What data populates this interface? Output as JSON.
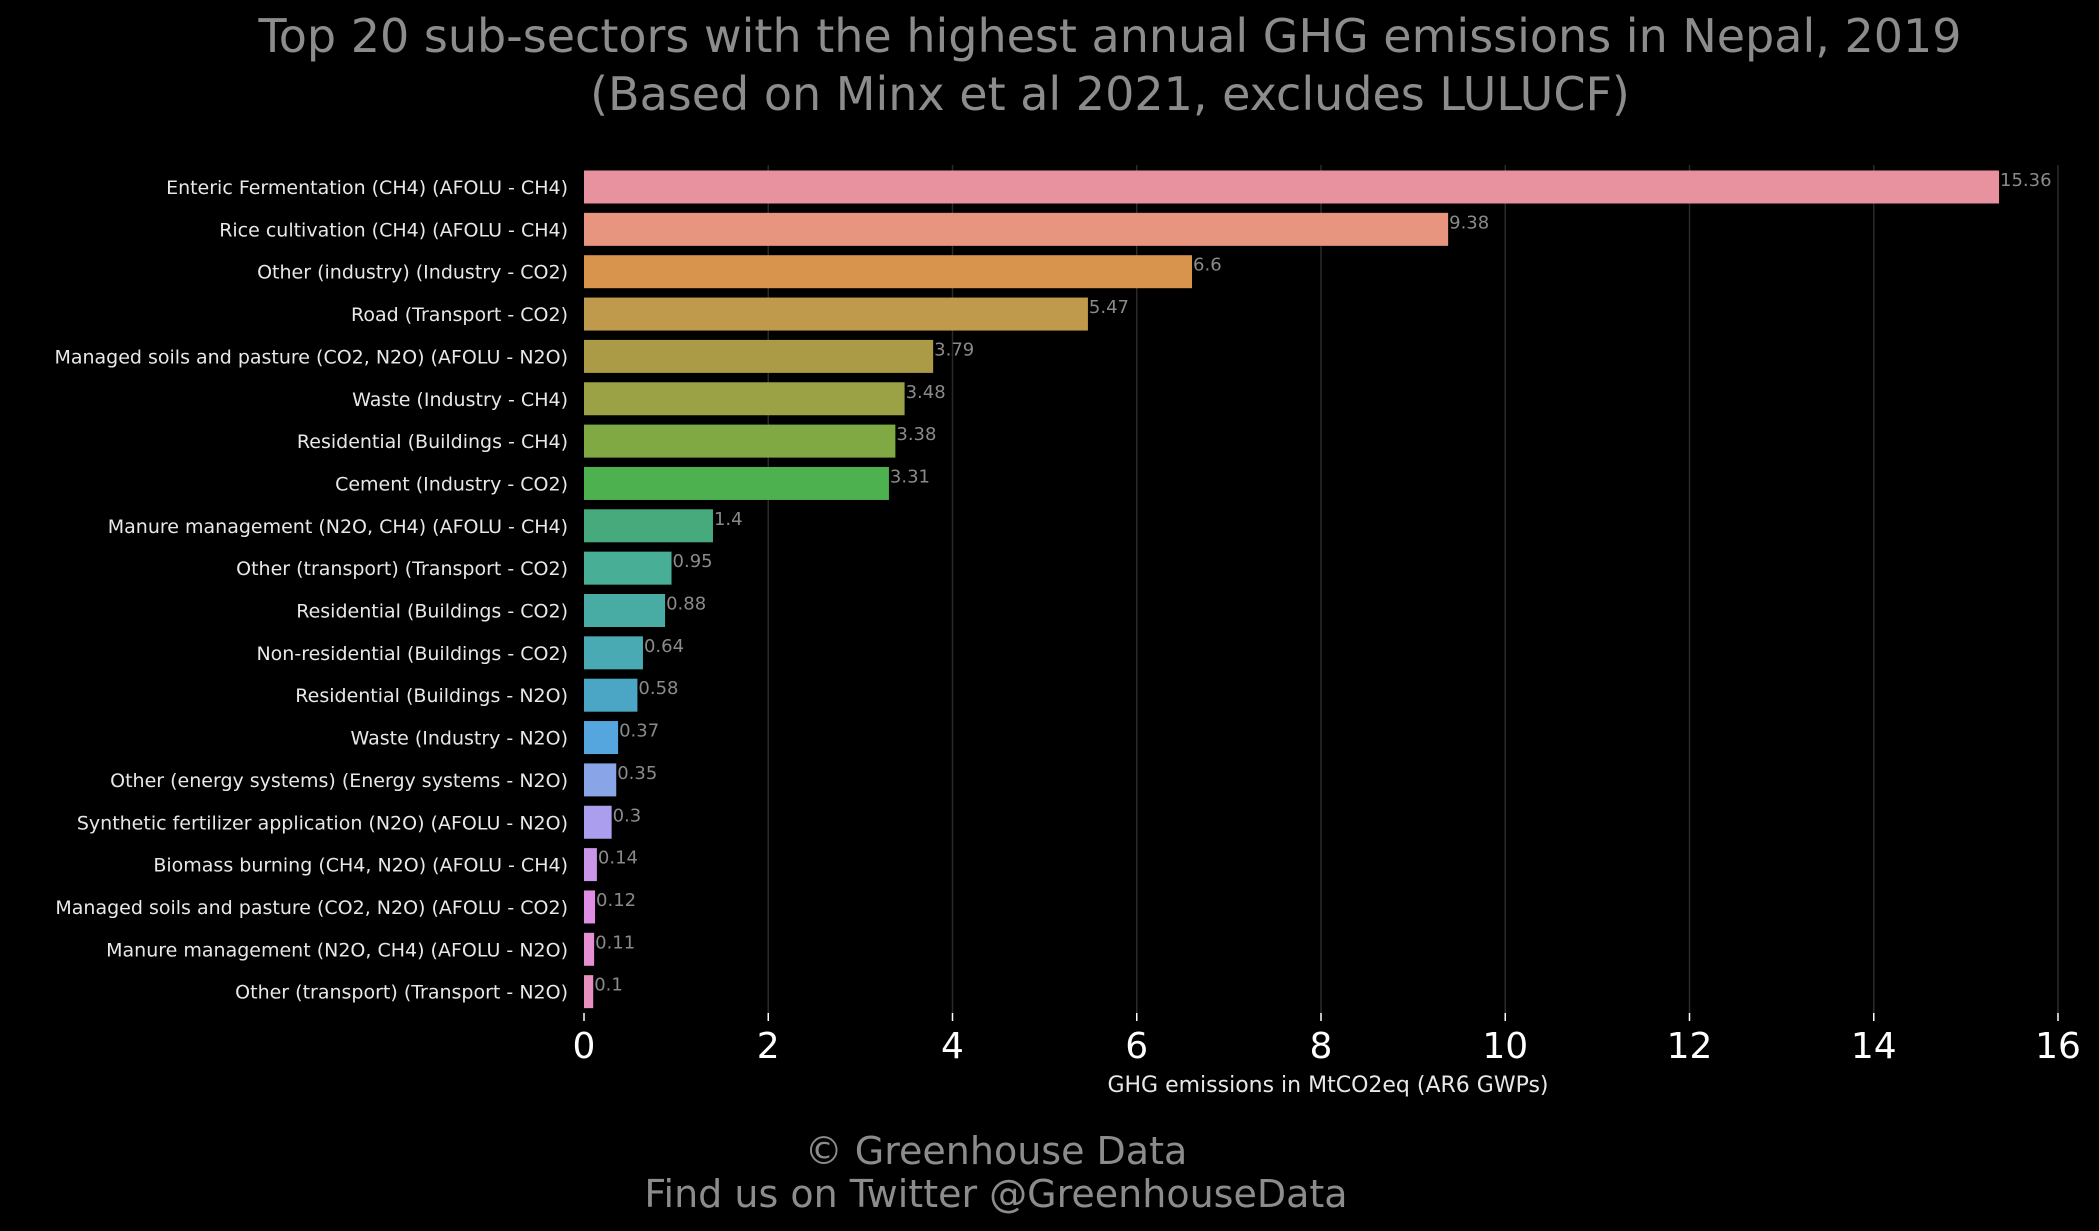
{
  "chart_data": {
    "type": "bar",
    "orientation": "horizontal",
    "title": "Top 20 sub-sectors with the highest annual GHG emissions in Nepal, 2019",
    "subtitle": "(Based on Minx et al 2021, excludes LULUCF)",
    "xlabel": "GHG emissions in MtCO2eq (AR6 GWPs)",
    "ylabel": "",
    "xlim": [
      0,
      16
    ],
    "xticks": [
      0,
      2,
      4,
      6,
      8,
      10,
      12,
      14,
      16
    ],
    "grid": "vertical",
    "background": "#000000",
    "categories": [
      "Enteric Fermentation (CH4) (AFOLU - CH4)",
      "Rice cultivation (CH4) (AFOLU - CH4)",
      "Other (industry) (Industry - CO2)",
      "Road (Transport - CO2)",
      "Managed soils and pasture (CO2, N2O) (AFOLU - N2O)",
      "Waste (Industry - CH4)",
      "Residential (Buildings - CH4)",
      "Cement (Industry - CO2)",
      "Manure management (N2O, CH4) (AFOLU - CH4)",
      "Other (transport) (Transport - CO2)",
      "Residential (Buildings - CO2)",
      "Non-residential (Buildings - CO2)",
      "Residential (Buildings - N2O)",
      "Waste (Industry - N2O)",
      "Other (energy systems) (Energy systems - N2O)",
      "Synthetic fertilizer application (N2O) (AFOLU - N2O)",
      "Biomass burning (CH4, N2O) (AFOLU - CH4)",
      "Managed soils and pasture (CO2, N2O) (AFOLU - CO2)",
      "Manure management (N2O, CH4) (AFOLU - N2O)",
      "Other (transport) (Transport - N2O)"
    ],
    "values": [
      15.36,
      9.38,
      6.6,
      5.47,
      3.79,
      3.48,
      3.38,
      3.31,
      1.4,
      0.95,
      0.88,
      0.64,
      0.58,
      0.37,
      0.35,
      0.3,
      0.14,
      0.12,
      0.11,
      0.1
    ],
    "value_labels": [
      "15.36",
      "9.38",
      "6.6",
      "5.47",
      "3.79",
      "3.48",
      "3.38",
      "3.31",
      "1.4",
      "0.95",
      "0.88",
      "0.64",
      "0.58",
      "0.37",
      "0.35",
      "0.3",
      "0.14",
      "0.12",
      "0.11",
      "0.1"
    ],
    "colors": [
      "#e8919f",
      "#e8957f",
      "#d8934c",
      "#c09a4c",
      "#ab9b46",
      "#9ba246",
      "#80a944",
      "#4db14f",
      "#47aa7c",
      "#48ae95",
      "#48aca4",
      "#49aab4",
      "#4aa6c4",
      "#55a6de",
      "#8aa4e8",
      "#ac9eef",
      "#c996ea",
      "#e08de6",
      "#e68fd2",
      "#e890bd"
    ]
  },
  "footer": {
    "line1": "© Greenhouse Data",
    "line2": "Find us on Twitter @GreenhouseData"
  }
}
